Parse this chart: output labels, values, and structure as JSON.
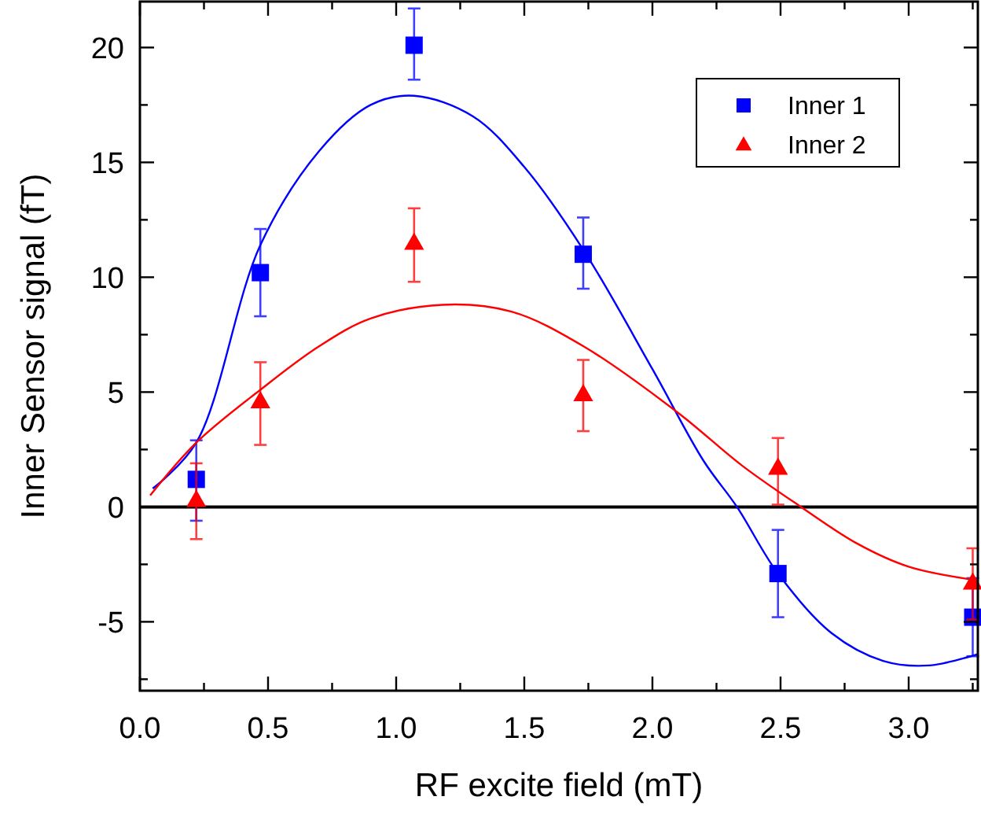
{
  "chart_data": {
    "type": "scatter",
    "xlabel": "RF excite field (mT)",
    "ylabel": "Inner Sensor signal (fT)",
    "xlim": [
      0,
      3.27
    ],
    "ylim": [
      -8,
      22
    ],
    "xticks": [
      {
        "value": 0,
        "label": "0.0"
      },
      {
        "value": 0.25,
        "label": null
      },
      {
        "value": 0.5,
        "label": "0.5"
      },
      {
        "value": 0.75,
        "label": null
      },
      {
        "value": 1,
        "label": "1.0"
      },
      {
        "value": 1.25,
        "label": null
      },
      {
        "value": 1.5,
        "label": "1.5"
      },
      {
        "value": 1.75,
        "label": null
      },
      {
        "value": 2,
        "label": "2.0"
      },
      {
        "value": 2.25,
        "label": null
      },
      {
        "value": 2.5,
        "label": "2.5"
      },
      {
        "value": 2.75,
        "label": null
      },
      {
        "value": 3,
        "label": "3.0"
      },
      {
        "value": 3.25,
        "label": null
      }
    ],
    "yticks": [
      {
        "value": -7.5,
        "label": null
      },
      {
        "value": -5,
        "label": "-5"
      },
      {
        "value": -2.5,
        "label": null
      },
      0,
      {
        "value": 2.5,
        "label": null
      },
      5,
      {
        "value": 7.5,
        "label": null
      },
      10,
      {
        "value": 12.5,
        "label": null
      },
      15,
      {
        "value": 17.5,
        "label": null
      },
      20
    ],
    "legend": "top right",
    "ref_lines": [
      {
        "axis": "y",
        "value": 0,
        "color": "#000000"
      }
    ],
    "series": [
      {
        "name": "Inner 1",
        "marker": "square",
        "color": "#0000ff",
        "x": [
          0.22,
          0.47,
          1.07,
          1.73,
          2.49,
          3.25
        ],
        "values": [
          1.2,
          10.2,
          20.1,
          11.0,
          -2.9,
          -4.8
        ],
        "errors": [
          [
            -0.6,
            2.9
          ],
          [
            8.3,
            12.1
          ],
          [
            18.6,
            21.7
          ],
          [
            9.5,
            12.6
          ],
          [
            -4.8,
            -1.0
          ],
          [
            -6.5,
            -3.1
          ]
        ]
      },
      {
        "name": "Inner 2",
        "marker": "triangle",
        "color": "#ff0000",
        "x": [
          0.22,
          0.47,
          1.07,
          1.73,
          2.49,
          3.25
        ],
        "values": [
          0.3,
          4.6,
          11.5,
          4.9,
          1.7,
          -3.3
        ],
        "errors": [
          [
            -1.4,
            1.9
          ],
          [
            2.7,
            6.3
          ],
          [
            9.8,
            13.0
          ],
          [
            3.3,
            6.4
          ],
          [
            0.1,
            3.0
          ],
          [
            -4.9,
            -1.8
          ]
        ]
      },
      {
        "type": "line",
        "marker": "none",
        "color": "#0000ff",
        "x": [
          0.05,
          0.22,
          0.47,
          0.7,
          0.9,
          1.07,
          1.3,
          1.5,
          1.73,
          2.0,
          2.2,
          2.33,
          2.49,
          2.7,
          2.9,
          3.08,
          3.27
        ],
        "values": [
          0.8,
          2.8,
          11.4,
          15.5,
          17.5,
          17.9,
          17.0,
          14.8,
          11.2,
          6.0,
          2.0,
          0,
          -2.9,
          -5.5,
          -6.7,
          -6.9,
          -6.4
        ]
      },
      {
        "type": "line",
        "marker": "none",
        "color": "#ff0000",
        "x": [
          0.04,
          0.22,
          0.47,
          0.7,
          0.9,
          1.18,
          1.45,
          1.73,
          2.1,
          2.35,
          2.58,
          2.8,
          3.0,
          3.27
        ],
        "values": [
          0.5,
          2.8,
          5.1,
          7.0,
          8.2,
          8.8,
          8.5,
          7.0,
          4.1,
          1.8,
          0,
          -1.6,
          -2.6,
          -3.2
        ]
      }
    ]
  }
}
